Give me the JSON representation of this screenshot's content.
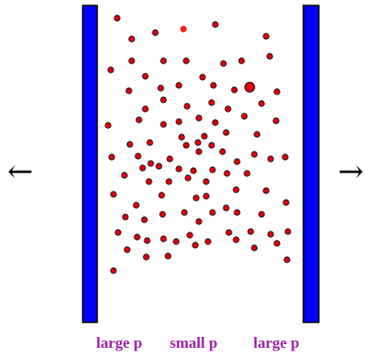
{
  "colors": {
    "wall": "#0000ff",
    "wall_outline": "#000000",
    "particle_fill": "#e0000e",
    "particle_outline": "#000000",
    "highlight_particle": "#ff1a1a",
    "label": "#a020a8"
  },
  "arrows": {
    "left": "←",
    "right": "→"
  },
  "labels": {
    "left": "large p",
    "middle": "small p",
    "right": "large p"
  },
  "walls": [
    {
      "name": "left-wall"
    },
    {
      "name": "right-wall"
    }
  ],
  "particles": {
    "count": 100,
    "large_count": 1,
    "highlighted_count": 1
  }
}
